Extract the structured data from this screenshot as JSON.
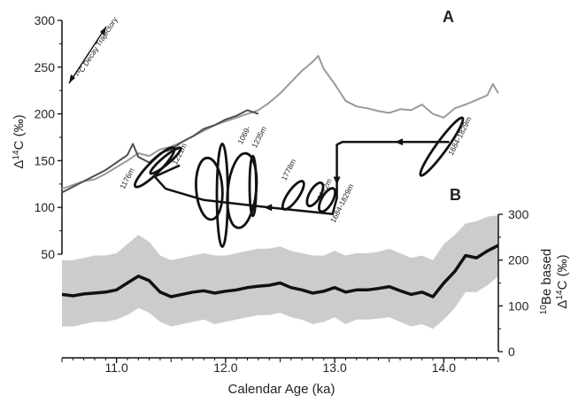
{
  "chart_data": [
    {
      "id": "panel-a",
      "type": "line",
      "panel_label": "A",
      "xlabel": "Calendar Age (ka)",
      "ylabel": "Δ14C (‰)",
      "ylim": [
        50,
        300
      ],
      "xlim": [
        10.5,
        14.5
      ],
      "x_ticks": [
        "11.0",
        "12.0",
        "13.0",
        "14.0"
      ],
      "y_ticks": [
        "50",
        "100",
        "150",
        "200",
        "250",
        "300"
      ],
      "grid": false,
      "series": [
        {
          "name": "",
          "color": "#9a9a9a",
          "points": [
            [
              10.5,
              120
            ],
            [
              10.6,
              124
            ],
            [
              10.7,
              128
            ],
            [
              10.8,
              130
            ],
            [
              10.9,
              136
            ],
            [
              11.0,
              143
            ],
            [
              11.1,
              150
            ],
            [
              11.2,
              158
            ],
            [
              11.3,
              155
            ],
            [
              11.4,
              162
            ],
            [
              11.5,
              165
            ],
            [
              11.6,
              170
            ],
            [
              11.7,
              176
            ],
            [
              11.8,
              182
            ],
            [
              11.9,
              188
            ],
            [
              12.0,
              192
            ],
            [
              12.1,
              196
            ],
            [
              12.2,
              200
            ],
            [
              12.3,
              204
            ],
            [
              12.4,
              212
            ],
            [
              12.5,
              222
            ],
            [
              12.6,
              234
            ],
            [
              12.7,
              246
            ],
            [
              12.8,
              256
            ],
            [
              12.85,
              262
            ],
            [
              12.9,
              248
            ],
            [
              13.0,
              232
            ],
            [
              13.1,
              214
            ],
            [
              13.2,
              208
            ],
            [
              13.3,
              206
            ],
            [
              13.4,
              203
            ],
            [
              13.5,
              201
            ],
            [
              13.6,
              205
            ],
            [
              13.7,
              204
            ],
            [
              13.8,
              210
            ],
            [
              13.9,
              200
            ],
            [
              14.0,
              196
            ],
            [
              14.1,
              206
            ],
            [
              14.2,
              210
            ],
            [
              14.3,
              215
            ],
            [
              14.4,
              220
            ],
            [
              14.45,
              232
            ],
            [
              14.5,
              222
            ]
          ]
        },
        {
          "name": "",
          "color": "#505050",
          "points": [
            [
              10.5,
              116
            ],
            [
              10.6,
              122
            ],
            [
              10.7,
              128
            ],
            [
              10.8,
              134
            ],
            [
              10.9,
              140
            ],
            [
              11.0,
              148
            ],
            [
              11.1,
              156
            ],
            [
              11.15,
              168
            ],
            [
              11.2,
              154
            ],
            [
              11.3,
              148
            ],
            [
              11.4,
              158
            ],
            [
              11.5,
              162
            ],
            [
              11.6,
              170
            ],
            [
              11.7,
              176
            ],
            [
              11.8,
              184
            ],
            [
              11.9,
              188
            ],
            [
              12.0,
              194
            ],
            [
              12.1,
              198
            ],
            [
              12.2,
              204
            ],
            [
              12.3,
              200
            ]
          ]
        }
      ],
      "loops": [
        {
          "label": "1176m",
          "x": 11.35,
          "y": 143,
          "rx": 0.25,
          "ry": 6.5,
          "angle": -45
        },
        {
          "label": "1221m",
          "x": 11.45,
          "y": 150,
          "rx": 0.18,
          "ry": 4,
          "angle": -40
        },
        {
          "label": "",
          "x": 11.85,
          "y": 120,
          "rx": 0.12,
          "ry": 33,
          "angle": -4
        },
        {
          "label": "",
          "x": 11.97,
          "y": 113,
          "rx": 0.05,
          "ry": 55,
          "angle": 0
        },
        {
          "label": "1069-1235m",
          "x": 12.15,
          "y": 118,
          "rx": 0.13,
          "ry": 40,
          "angle": 6
        },
        {
          "label": "",
          "x": 12.25,
          "y": 123,
          "rx": 0.03,
          "ry": 32,
          "angle": 0
        },
        {
          "label": "1778m",
          "x": 12.62,
          "y": 113,
          "rx": 0.05,
          "ry": 18,
          "angle": 35
        },
        {
          "label": "2372m",
          "x": 12.82,
          "y": 114,
          "rx": 0.05,
          "ry": 14,
          "angle": 30
        },
        {
          "label": "1684-1829m",
          "x": 12.93,
          "y": 108,
          "rx": 0.05,
          "ry": 14,
          "angle": 30
        },
        {
          "label": "1684-1829m",
          "x": 13.98,
          "y": 165,
          "rx": 0.05,
          "ry": 38,
          "angle": 36
        }
      ],
      "loop_labels": [
        {
          "text": "1176m",
          "x": 11.07,
          "y": 119,
          "angle": -63
        },
        {
          "text": "1221m",
          "x": 11.55,
          "y": 145,
          "angle": -63
        },
        {
          "text": "1069-",
          "x": 12.15,
          "y": 167,
          "angle": -63
        },
        {
          "text": "1235m",
          "x": 12.28,
          "y": 163,
          "angle": -63
        },
        {
          "text": "1778m",
          "x": 12.55,
          "y": 128,
          "angle": -63
        },
        {
          "text": "2372m",
          "x": 12.88,
          "y": 107,
          "angle": -63
        },
        {
          "text": "1684-1829m",
          "x": 13.0,
          "y": 83,
          "angle": -63
        },
        {
          "text": "1684-1829m",
          "x": 14.08,
          "y": 155,
          "angle": -63
        }
      ],
      "trajectory_label": "14C Decay Trajectory",
      "trajectory_path": [
        [
          14.05,
          170
        ],
        [
          13.72,
          170
        ],
        [
          13.07,
          170
        ],
        [
          13.02,
          167
        ],
        [
          13.02,
          130
        ],
        [
          13.02,
          110
        ],
        [
          12.98,
          93
        ],
        [
          12.4,
          100
        ],
        [
          11.8,
          108
        ],
        [
          11.45,
          120
        ],
        [
          11.35,
          133
        ],
        [
          11.58,
          145
        ]
      ],
      "trajectory_arrows": [
        {
          "x": 13.6,
          "y": 170,
          "dir": "left"
        },
        {
          "x": 13.02,
          "y": 130,
          "dir": "down"
        },
        {
          "x": 12.4,
          "y": 100,
          "dir": "left"
        }
      ]
    },
    {
      "id": "panel-b",
      "type": "area",
      "panel_label": "B",
      "xlabel": "Calendar Age (ka)",
      "ylabel": "10Be based Δ14C (‰)",
      "ylim": [
        0,
        300
      ],
      "xlim": [
        10.5,
        14.5
      ],
      "x_ticks": [
        "11.0",
        "12.0",
        "13.0",
        "14.0"
      ],
      "y_ticks": [
        "0",
        "100",
        "200",
        "300"
      ],
      "grid": false,
      "series": [
        {
          "name": "",
          "color": "#111111",
          "band_color": "#cccccc",
          "x": [
            10.5,
            10.6,
            10.7,
            10.8,
            10.9,
            11.0,
            11.1,
            11.2,
            11.3,
            11.4,
            11.5,
            11.6,
            11.7,
            11.8,
            11.9,
            12.0,
            12.1,
            12.2,
            12.3,
            12.4,
            12.5,
            12.6,
            12.7,
            12.8,
            12.9,
            13.0,
            13.1,
            13.2,
            13.3,
            13.4,
            13.5,
            13.6,
            13.7,
            13.8,
            13.9,
            14.0,
            14.1,
            14.2,
            14.3,
            14.4,
            14.5
          ],
          "values": [
            125,
            122,
            126,
            128,
            130,
            135,
            150,
            165,
            155,
            130,
            120,
            125,
            130,
            133,
            128,
            132,
            135,
            140,
            143,
            145,
            150,
            140,
            135,
            128,
            132,
            140,
            130,
            135,
            135,
            138,
            142,
            133,
            125,
            130,
            120,
            150,
            175,
            210,
            205,
            220,
            232
          ],
          "upper": [
            200,
            200,
            205,
            210,
            210,
            215,
            235,
            255,
            240,
            210,
            200,
            205,
            210,
            215,
            210,
            210,
            215,
            220,
            225,
            225,
            230,
            220,
            215,
            210,
            210,
            220,
            210,
            215,
            215,
            218,
            225,
            215,
            205,
            210,
            200,
            235,
            255,
            280,
            285,
            295,
            298
          ],
          "lower": [
            55,
            55,
            60,
            65,
            65,
            70,
            80,
            95,
            85,
            65,
            55,
            60,
            65,
            70,
            60,
            65,
            70,
            75,
            80,
            80,
            85,
            75,
            70,
            60,
            65,
            75,
            60,
            70,
            70,
            72,
            75,
            65,
            55,
            60,
            50,
            70,
            95,
            130,
            130,
            145,
            165
          ]
        }
      ]
    }
  ]
}
